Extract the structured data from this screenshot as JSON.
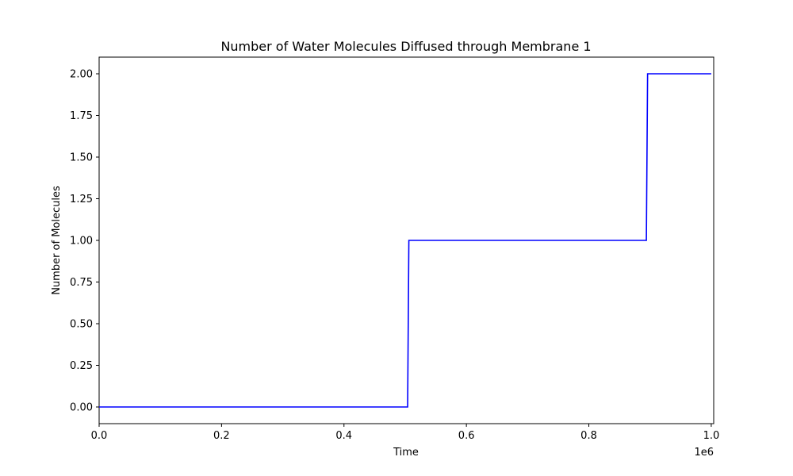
{
  "chart_data": {
    "type": "line",
    "title": "Number of Water Molecules Diffused through Membrane 1",
    "xlabel": "Time",
    "ylabel": "Number of Molecules",
    "x_scale_label": "1e6",
    "xlim": [
      0,
      1004000
    ],
    "ylim": [
      -0.1,
      2.1
    ],
    "grid": false,
    "x_ticks": [
      {
        "value": 0,
        "label": "0.0"
      },
      {
        "value": 200000,
        "label": "0.2"
      },
      {
        "value": 400000,
        "label": "0.4"
      },
      {
        "value": 600000,
        "label": "0.6"
      },
      {
        "value": 800000,
        "label": "0.8"
      },
      {
        "value": 1000000,
        "label": "1.0"
      }
    ],
    "y_ticks": [
      {
        "value": 0,
        "label": "0.00"
      },
      {
        "value": 0.25,
        "label": "0.25"
      },
      {
        "value": 0.5,
        "label": "0.50"
      },
      {
        "value": 0.75,
        "label": "0.75"
      },
      {
        "value": 1.0,
        "label": "1.00"
      },
      {
        "value": 1.25,
        "label": "1.25"
      },
      {
        "value": 1.5,
        "label": "1.50"
      },
      {
        "value": 1.75,
        "label": "1.75"
      },
      {
        "value": 2.0,
        "label": "2.00"
      }
    ],
    "series": [
      {
        "color": "#0000ff",
        "points": [
          [
            0,
            0
          ],
          [
            504000,
            0
          ],
          [
            506000,
            1
          ],
          [
            894000,
            1
          ],
          [
            896000,
            2
          ],
          [
            1000000,
            2
          ]
        ]
      }
    ]
  }
}
